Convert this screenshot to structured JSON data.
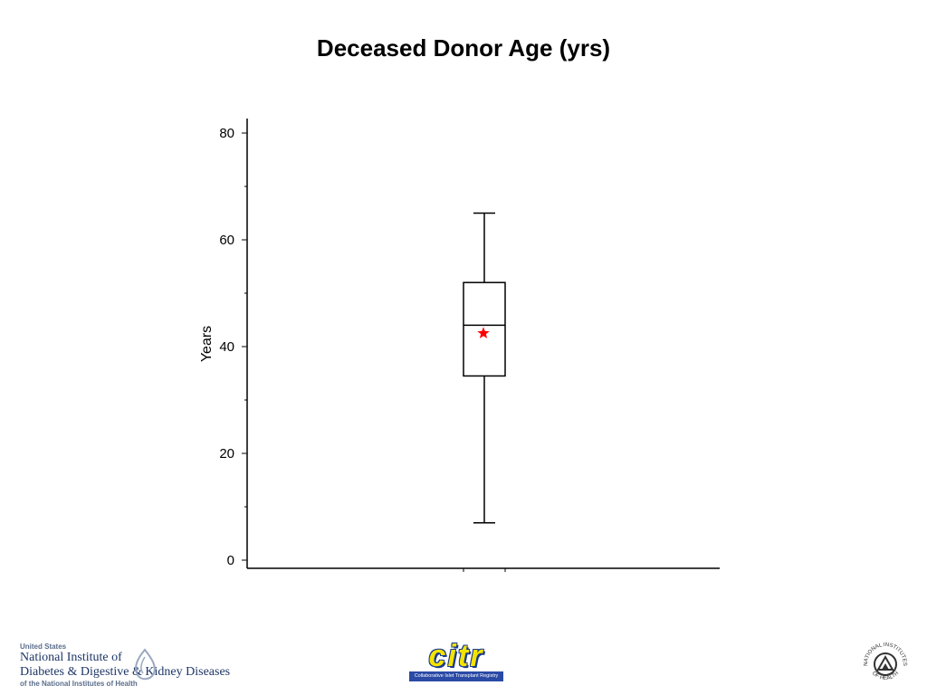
{
  "title": "Deceased Donor Age (yrs)",
  "chart_data": {
    "type": "box",
    "title": "Deceased Donor Age (yrs)",
    "ylabel": "Years",
    "xlabel": "",
    "ylim": [
      0,
      82
    ],
    "yticks_major": [
      0,
      20,
      40,
      60,
      80
    ],
    "yticks_minor": [
      10,
      30,
      50,
      70
    ],
    "box": {
      "min": 7,
      "q1": 34.5,
      "median": 44,
      "q3": 52,
      "max": 65,
      "mean": 42.5
    },
    "colors": {
      "box": "#000000",
      "mean_marker": "#ff0000"
    },
    "mean_marker": "star",
    "grid": false
  },
  "footer": {
    "niddk": {
      "line1": "United States",
      "line2": "National Institute of",
      "line3": "Diabetes & Digestive & Kidney Diseases",
      "line4": "of the National Institutes of Health"
    },
    "citr": {
      "word": "citr",
      "subtitle": "Collaborative Islet Transplant Registry"
    },
    "nih_seal": {
      "top_text": "NATIONAL INSTITUTES",
      "bottom_text": "OF HEALTH"
    }
  }
}
